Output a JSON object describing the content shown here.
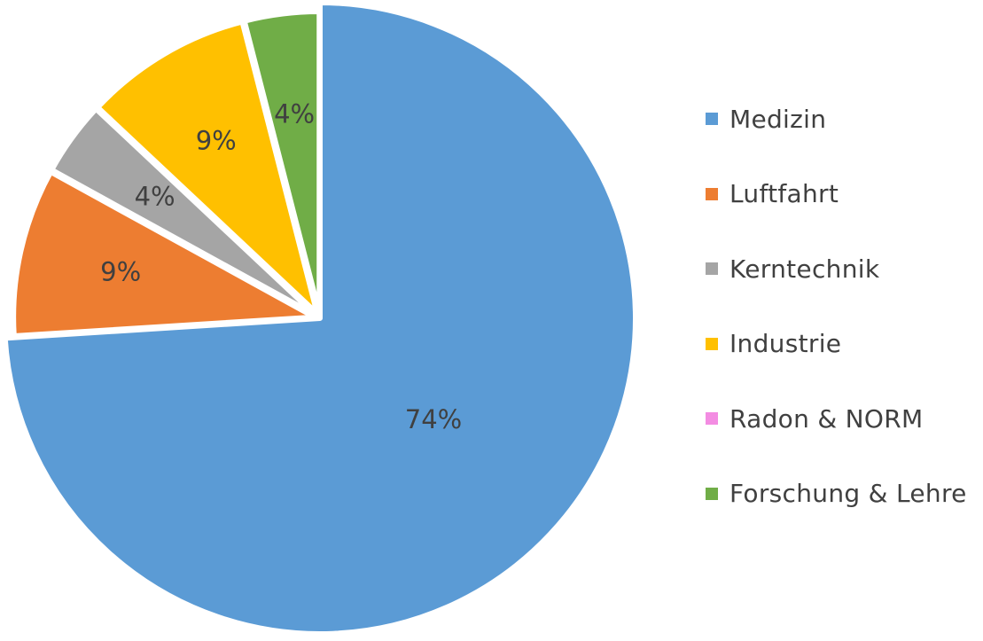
{
  "chart_data": {
    "type": "pie",
    "title": "",
    "slices": [
      {
        "name": "Medizin",
        "value": 74,
        "label": "74%",
        "color": "#5B9BD5"
      },
      {
        "name": "Luftfahrt",
        "value": 9,
        "label": "9%",
        "color": "#ED7D31"
      },
      {
        "name": "Kerntechnik",
        "value": 4,
        "label": "4%",
        "color": "#A5A5A5"
      },
      {
        "name": "Industrie",
        "value": 9,
        "label": "9%",
        "color": "#FFC000"
      },
      {
        "name": "Radon & NORM",
        "value": 0,
        "label": "",
        "color": "#F38CE2"
      },
      {
        "name": "Forschung & Lehre",
        "value": 4,
        "label": "4%",
        "color": "#70AD47"
      }
    ],
    "start_angle_deg": 0,
    "direction": "clockwise",
    "legend_position": "right",
    "exploded_small_slices": true
  }
}
